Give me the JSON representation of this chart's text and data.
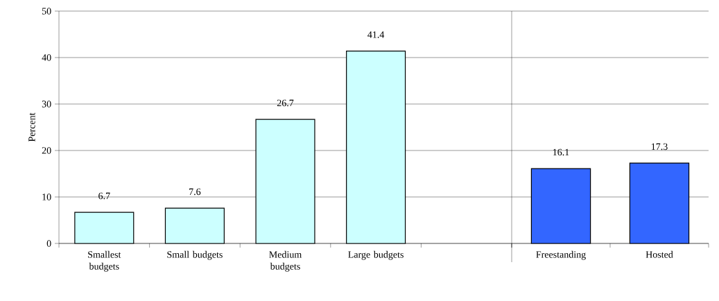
{
  "chart_data": [
    {
      "type": "bar",
      "ylabel": "Percent",
      "categories": [
        "Smallest budgets",
        "Small budgets",
        "Medium budgets",
        "Large budgets",
        null
      ],
      "values": [
        6.7,
        7.6,
        26.7,
        41.4,
        null
      ],
      "color": "#ccffff",
      "ylim": [
        0,
        50
      ],
      "yticks": [
        0,
        10,
        20,
        30,
        40,
        50
      ],
      "grid": "y",
      "data_labels": true
    },
    {
      "type": "bar",
      "categories": [
        "Freestanding",
        "Hosted"
      ],
      "values": [
        16.1,
        17.3
      ],
      "color": "#3366ff",
      "ylim": [
        0,
        50
      ],
      "yticks": [
        0,
        10,
        20,
        30,
        40,
        50
      ],
      "grid": "y",
      "data_labels": true,
      "tick_labels": "x"
    }
  ]
}
